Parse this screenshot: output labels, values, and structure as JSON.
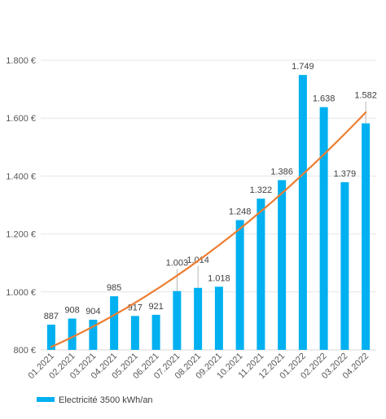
{
  "chart_data": {
    "type": "bar",
    "categories": [
      "01.2021",
      "02.2021",
      "03.2021",
      "04.2021",
      "05.2021",
      "06.2021",
      "07.2021",
      "08.2021",
      "09.2021",
      "10.2021",
      "11.2021",
      "12.2021",
      "01.2022",
      "02.2022",
      "03.2022",
      "04.2022"
    ],
    "series": [
      {
        "name": "Electricité 3500 kWh/an",
        "values": [
          887,
          908,
          904,
          985,
          917,
          921,
          1003,
          1014,
          1018,
          1248,
          1322,
          1386,
          1749,
          1638,
          1379,
          1582
        ],
        "labels": [
          "887",
          "908",
          "904",
          "985",
          "917",
          "921",
          "1.003",
          "1.014",
          "1.018",
          "1.248",
          "1.322",
          "1.386",
          "1.749",
          "1.638",
          "1.379",
          "1.582"
        ],
        "color": "#00b0f0"
      }
    ],
    "trendline": {
      "type": "polynomial",
      "color": "#ed7d31",
      "start": 810,
      "end": 1620
    },
    "ylim": [
      800,
      1800
    ],
    "yticks": [
      800,
      1000,
      1200,
      1400,
      1600,
      1800
    ],
    "ytick_labels": [
      "800 €",
      "1.000 €",
      "1.200 €",
      "1.400 €",
      "1.600 €",
      "1.800 €"
    ],
    "grid": true,
    "legend_position": "bottom-left",
    "data_label_connectors": [
      6,
      7,
      15
    ]
  }
}
